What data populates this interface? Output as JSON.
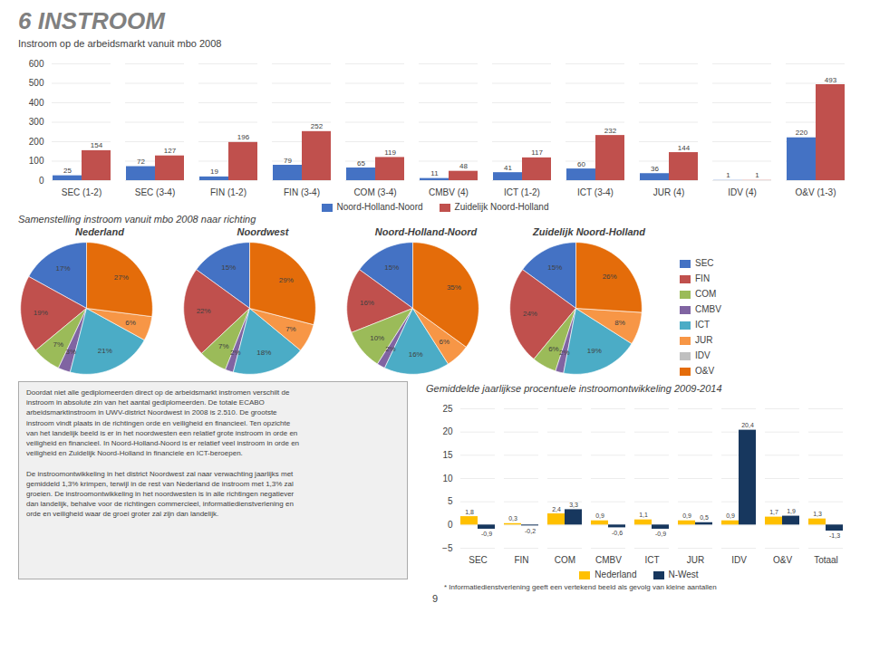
{
  "title": "6 INSTROOM",
  "chart_data": [
    {
      "type": "bar",
      "title": "Instroom op de arbeidsmarkt vanuit mbo 2008",
      "categories": [
        "SEC (1-2)",
        "SEC (3-4)",
        "FIN (1-2)",
        "FIN (3-4)",
        "COM (3-4)",
        "CMBV (4)",
        "ICT (1-2)",
        "ICT (3-4)",
        "JUR (4)",
        "IDV (4)",
        "O&V (1-3)"
      ],
      "series": [
        {
          "name": "Noord-Holland-Noord",
          "color": "#4472c4",
          "values": [
            25,
            72,
            19,
            79,
            65,
            11,
            41,
            60,
            36,
            1,
            220
          ]
        },
        {
          "name": "Zuidelijk Noord-Holland",
          "color": "#c0504d",
          "values": [
            154,
            127,
            196,
            252,
            119,
            48,
            117,
            232,
            144,
            1,
            493
          ]
        }
      ],
      "ylim": [
        0,
        600
      ],
      "yticks": [
        0,
        100,
        200,
        300,
        400,
        500,
        600
      ],
      "grid": true,
      "legend": "bottom",
      "data_labels": true
    },
    {
      "type": "pie",
      "title": "Samenstelling instroom vanuit mbo 2008 naar richting",
      "categories": [
        "SEC",
        "FIN",
        "COM",
        "CMBV",
        "ICT",
        "JUR",
        "IDV",
        "O&V"
      ],
      "colors": [
        "#4472c4",
        "#c0504d",
        "#9bbb59",
        "#8064a2",
        "#4bacc6",
        "#f79646",
        "#c0c0c0",
        "#e46c0a"
      ],
      "series": [
        {
          "name": "Nederland",
          "values": [
            17,
            19,
            7,
            3,
            21,
            6,
            0,
            27
          ],
          "value_labels": [
            "17%",
            "19%",
            "7%",
            "3%",
            "21%",
            "6%",
            null,
            "27%"
          ]
        },
        {
          "name": "Noordwest",
          "values": [
            15,
            22,
            7,
            2,
            18,
            7,
            0,
            29
          ],
          "value_labels": [
            "15%",
            "22%",
            "7%",
            "2%",
            "18%",
            "7%",
            null,
            "29%"
          ]
        },
        {
          "name": "Noord-Holland-Noord",
          "values": [
            15,
            16,
            10,
            2,
            16,
            6,
            0,
            35
          ],
          "value_labels": [
            "15%",
            "16%",
            "10%",
            "2%",
            "16%",
            "6%",
            null,
            "35%"
          ]
        },
        {
          "name": "Zuidelijk Noord-Holland",
          "values": [
            15,
            24,
            6,
            2,
            19,
            8,
            0,
            26
          ],
          "value_labels": [
            "15%",
            "24%",
            "6%",
            "2%",
            "19%",
            "8%",
            null,
            "26%"
          ]
        }
      ],
      "legend": "right",
      "data_labels": true
    },
    {
      "type": "bar",
      "title": "Gemiddelde jaarlijkse procentuele instroomontwikkeling 2009-2014",
      "categories": [
        "SEC",
        "FIN",
        "COM",
        "CMBV",
        "ICT",
        "JUR",
        "IDV",
        "O&V",
        "Totaal"
      ],
      "series": [
        {
          "name": "Nederland",
          "color": "#ffc000",
          "values": [
            1.8,
            0.3,
            2.4,
            0.9,
            1.1,
            0.9,
            0.9,
            1.7,
            1.3
          ],
          "value_labels": [
            "1,8",
            "0,3",
            "2,4",
            "0,9",
            "1,1",
            "0,9",
            "0,9",
            "1,7",
            "1,3"
          ]
        },
        {
          "name": "N-West",
          "color": "#17375e",
          "values": [
            -0.9,
            -0.2,
            3.3,
            -0.6,
            -0.9,
            0.5,
            20.4,
            1.9,
            -1.3
          ],
          "value_labels": [
            "-0,9",
            "-0,2",
            "3,3",
            "-0,6",
            "-0,9",
            "0,5",
            "20,4",
            "1,9",
            "-1,3"
          ]
        }
      ],
      "ylim": [
        -5,
        25
      ],
      "yticks": [
        -5,
        0,
        5,
        10,
        15,
        20,
        25
      ],
      "grid": true,
      "legend": "bottom",
      "data_labels": true
    }
  ],
  "annotations": [
    "Doordat niet alle gediplomeerden direct op de arbeidsmarkt instromen verschilt de\ninstroom in absolute zin van het aantal gediplomeerden. De totale ECABO\narbeidsmarktinstroom in UWV-district Noordwest in 2008 is 2.510. De grootste\ninstroom vindt plaats in de richtingen orde en veiligheid en financieel. Ten opzichte\nvan het landelijk beeld is er in het noordwesten een relatief grote instroom in orde en\nveiligheid en financieel. In Noord-Holland-Noord is er relatief veel instroom in orde en\nveiligheid en Zuidelijk Noord-Holland in financiele en ICT-beroepen.\n\nDe instroomontwikkeling in het district Noordwest zal naar verwachting jaarlijks met\ngemiddeld 1,3% krimpen, terwijl in de rest van Nederland de instroom met 1,3% zal\ngroeien. De instroomontwikkeling in het noordwesten is in alle richtingen negatiever\ndan landelijk, behalve voor de richtingen commercieel, informatiedienstverlening en\norde en veiligheid waar de groei groter zal zijn dan landelijk.",
    "* Informatiedienstverlening geeft een vertekend beeld als gevolg van kleine aantallen",
    "9"
  ]
}
